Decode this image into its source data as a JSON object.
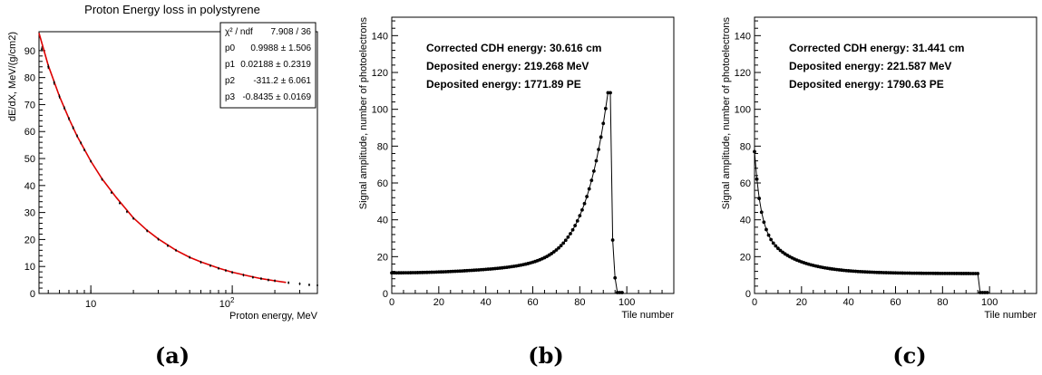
{
  "panels": [
    {
      "caption": "(a)"
    },
    {
      "caption": "(b)"
    },
    {
      "caption": "(c)"
    }
  ],
  "chart_data": [
    {
      "type": "line",
      "title": "Proton Energy loss in polystyrene",
      "xlabel": "Proton energy, MeV",
      "ylabel": "dE/dX, MeV/(g/cm2)",
      "x_scale": "log",
      "xlim": [
        4.3,
        400
      ],
      "ylim": [
        0,
        97
      ],
      "x_tick_labels": [
        "10",
        "10^2"
      ],
      "y_ticks": [
        0,
        10,
        20,
        30,
        40,
        50,
        60,
        70,
        80,
        90
      ],
      "stats_box": {
        "rows": [
          {
            "label": "χ² / ndf",
            "value": "7.908 / 36"
          },
          {
            "label": "p0",
            "value": "0.9988 ± 1.506"
          },
          {
            "label": "p1",
            "value": "0.02188 ± 0.2319"
          },
          {
            "label": "p2",
            "value": "-311.2 ± 6.061"
          },
          {
            "label": "p3",
            "value": "-0.8435 ± 0.0169"
          }
        ]
      },
      "series": [
        {
          "role": "data points",
          "color": "#000000",
          "x": [
            4.5,
            5,
            5.5,
            6,
            6.5,
            7,
            7.5,
            8,
            8.5,
            9,
            10,
            12,
            14,
            16,
            18,
            20,
            25,
            30,
            35,
            40,
            50,
            60,
            70,
            80,
            90,
            100,
            120,
            140,
            160,
            180,
            200,
            250,
            300,
            350,
            400
          ],
          "y": [
            90.6,
            84.0,
            78.1,
            73.0,
            68.7,
            64.8,
            61.4,
            58.4,
            55.8,
            53.2,
            49.0,
            42.3,
            37.4,
            33.5,
            30.3,
            27.8,
            23.2,
            20.1,
            17.7,
            16.0,
            13.4,
            11.6,
            10.3,
            9.3,
            8.5,
            7.8,
            6.8,
            6.0,
            5.5,
            5.0,
            4.7,
            4.0,
            3.6,
            3.2,
            3.0
          ]
        },
        {
          "role": "fit",
          "color": "#dd0000",
          "x": [
            4.3,
            5,
            6,
            7,
            8,
            10,
            12,
            15,
            20,
            25,
            30,
            40,
            50,
            60,
            80,
            100,
            130,
            160,
            200,
            240
          ],
          "y": [
            96.5,
            84.5,
            73.0,
            64.8,
            58.3,
            49.0,
            42.5,
            35.8,
            28.0,
            23.4,
            20.2,
            16.0,
            13.4,
            11.7,
            9.4,
            7.9,
            6.5,
            5.5,
            4.7,
            4.1
          ]
        }
      ]
    },
    {
      "type": "line",
      "title": "",
      "xlabel": "Tile number",
      "ylabel": "Signal amplitude, number of photoelectrons",
      "xlim": [
        0,
        120
      ],
      "ylim": [
        0,
        150
      ],
      "x_ticks": [
        0,
        20,
        40,
        60,
        80,
        100
      ],
      "y_ticks": [
        0,
        20,
        40,
        60,
        80,
        100,
        120,
        140
      ],
      "annotations": [
        "Corrected CDH energy: 30.616 cm",
        "Deposited energy: 219.268 MeV",
        "Deposited energy: 1771.89 PE"
      ],
      "series": [
        {
          "shape": "bragg-rising",
          "start": 11.2,
          "peak_x": 93,
          "peak_y": 109,
          "tail": [
            [
              94,
              29
            ],
            [
              95,
              8.5
            ],
            [
              96,
              0.5
            ],
            [
              97,
              0.5
            ],
            [
              98,
              0.5
            ]
          ]
        }
      ]
    },
    {
      "type": "line",
      "title": "",
      "xlabel": "Tile number",
      "ylabel": "Signal amplitude, number of photoelectrons",
      "xlim": [
        0,
        120
      ],
      "ylim": [
        0,
        150
      ],
      "x_ticks": [
        0,
        20,
        40,
        60,
        80,
        100
      ],
      "y_ticks": [
        0,
        20,
        40,
        60,
        80,
        100,
        120,
        140
      ],
      "annotations": [
        "Corrected CDH energy: 31.441 cm",
        "Deposited energy: 221.587 MeV",
        "Deposited energy: 1790.63 PE"
      ],
      "series": [
        {
          "shape": "bragg-falling",
          "peak_x": 0,
          "peak_y": 77,
          "end": 10.8,
          "end_x": 95,
          "tail": [
            [
              96,
              0.5
            ],
            [
              97,
              0.5
            ],
            [
              98,
              0.5
            ],
            [
              99,
              0.5
            ]
          ]
        }
      ]
    }
  ]
}
